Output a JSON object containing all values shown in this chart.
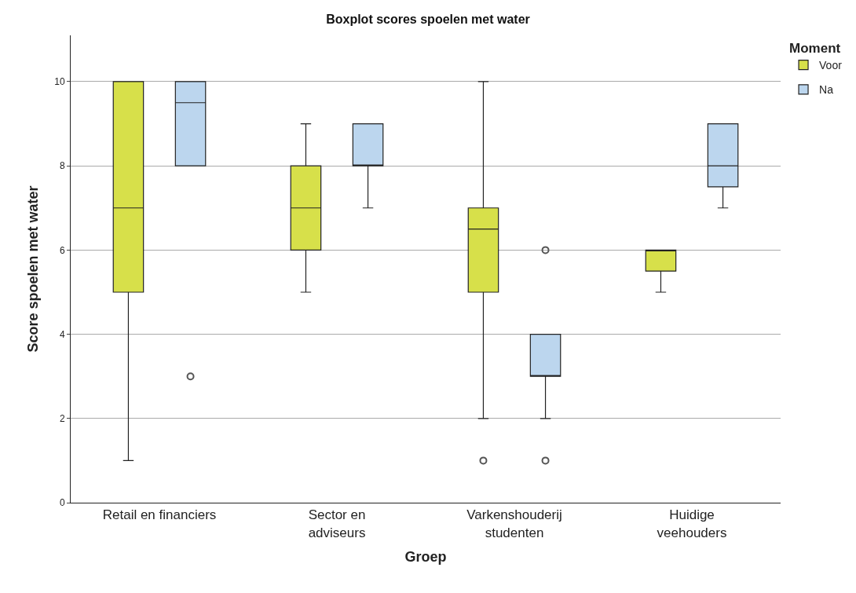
{
  "chart_data": {
    "type": "box",
    "title": "Boxplot scores spoelen met water",
    "xlabel": "Groep",
    "ylabel": "Score spoelen met water",
    "legend_title": "Moment",
    "categories": [
      "Retail en financiers",
      "Sector en\nadviseurs",
      "Varkenshouderij\nstudenten",
      "Huidige\nveehouders"
    ],
    "series": [
      {
        "name": "Voor",
        "color": "#d7e04a",
        "boxes": [
          {
            "low": 1,
            "q1": 5,
            "median": 7,
            "q3": 10,
            "high": 10
          },
          {
            "low": 5,
            "q1": 6,
            "median": 7,
            "q3": 8,
            "high": 9
          },
          {
            "low": 2,
            "q1": 5,
            "median": 6.5,
            "q3": 7,
            "high": 10,
            "outliers": [
              1
            ]
          },
          {
            "low": 5,
            "q1": 5.5,
            "median": 6,
            "q3": 6,
            "high": 6
          }
        ]
      },
      {
        "name": "Na",
        "color": "#bcd6ee",
        "boxes": [
          {
            "low": 8,
            "q1": 8,
            "median": 9.5,
            "q3": 10,
            "high": 10,
            "outliers": [
              3
            ]
          },
          {
            "low": 7,
            "q1": 8,
            "median": 8,
            "q3": 9,
            "high": 9
          },
          {
            "low": 2,
            "q1": 3,
            "median": 3,
            "q3": 4,
            "high": 4,
            "outliers": [
              6,
              1
            ]
          },
          {
            "low": 7,
            "q1": 7.5,
            "median": 8,
            "q3": 9,
            "high": 9
          }
        ]
      }
    ],
    "ylim": [
      0,
      11.1
    ],
    "yticks": [
      0,
      2,
      4,
      6,
      8,
      10
    ],
    "grid": "y",
    "legend": "top right"
  }
}
